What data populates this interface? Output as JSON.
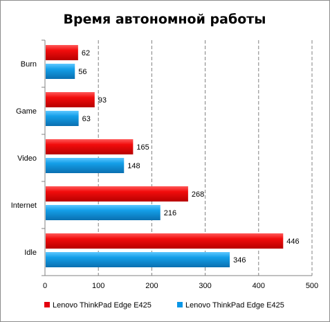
{
  "chart_data": {
    "type": "bar",
    "orientation": "horizontal",
    "title": "Время автономной работы",
    "categories": [
      "Burn",
      "Game",
      "Video",
      "Internet",
      "Idle"
    ],
    "series": [
      {
        "name": "Lenovo ThinkPad Edge E425",
        "color": "#e3000f",
        "values": [
          62,
          93,
          165,
          268,
          446
        ]
      },
      {
        "name": "Lenovo ThinkPad Edge E425",
        "color": "#0a96e6",
        "values": [
          56,
          63,
          148,
          216,
          346
        ]
      }
    ],
    "xlim": [
      0,
      500
    ],
    "xticks": [
      0,
      100,
      200,
      300,
      400,
      500
    ],
    "grid": "vertical dashed",
    "legend_position": "bottom"
  }
}
